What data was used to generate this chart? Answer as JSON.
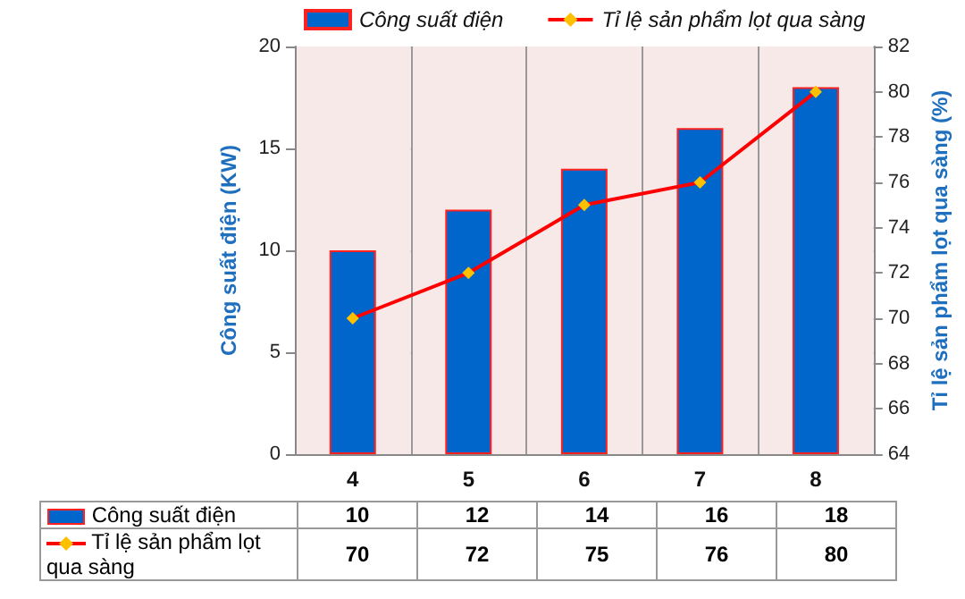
{
  "chart_data": {
    "type": "bar",
    "categories": [
      "4",
      "5",
      "6",
      "7",
      "8"
    ],
    "ylabel": "Công suất điện (KW)",
    "y2label": "Tỉ lệ sản phẩm lọt qua sàng (%)",
    "series": [
      {
        "name": "Công suất điện",
        "color": "#0066cc",
        "values": [
          10,
          12,
          14,
          16,
          18
        ]
      },
      {
        "name": "Tỉ lệ sản phẩm lọt qua sàng",
        "type": "line",
        "axis": "y2",
        "color": "#ff0000",
        "values": [
          70,
          72,
          75,
          76,
          80
        ]
      }
    ],
    "ylim": [
      0,
      20
    ],
    "yticks": [
      0,
      5,
      10,
      15,
      20
    ],
    "y2lim": [
      64,
      82
    ],
    "y2ticks": [
      64,
      66,
      68,
      70,
      72,
      74,
      76,
      78,
      80,
      82
    ],
    "grid": true,
    "legend": "top",
    "marker": "diamond",
    "data_labels": true
  }
}
